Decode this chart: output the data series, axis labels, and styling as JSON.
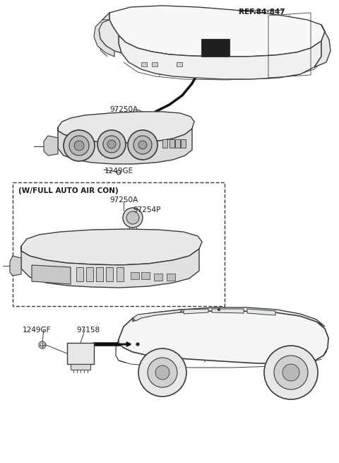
{
  "bg_color": "#ffffff",
  "line_color": "#3a3a3a",
  "text_color": "#1a1a1a",
  "ref_label": "REF.84-847",
  "labels": {
    "97250A_top": "97250A",
    "1249GE": "1249GE",
    "w_full_auto": "(W/FULL AUTO AIR CON)",
    "97250A_box": "97250A",
    "97254P": "97254P",
    "1249GF": "1249GF",
    "97158": "97158"
  },
  "figsize": [
    4.8,
    6.55
  ],
  "dpi": 100
}
